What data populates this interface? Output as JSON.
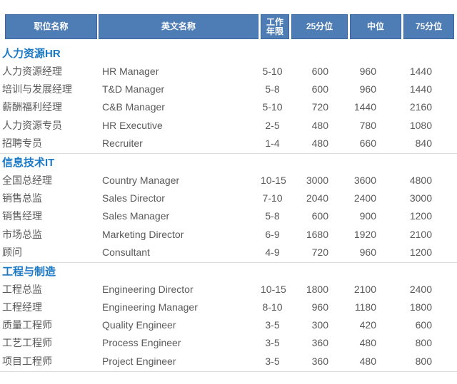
{
  "colors": {
    "header_fill": "#4E7CB4",
    "header_border": "#3A66A0",
    "header_text": "#FFFFFF",
    "section_title": "#1B78C5",
    "body_text": "#595959",
    "divider": "#DBDBDB"
  },
  "table": {
    "columns": [
      {
        "id": "cn",
        "label": "职位名称"
      },
      {
        "id": "en",
        "label": "英文名称"
      },
      {
        "id": "years",
        "label": "工作\n年限"
      },
      {
        "id": "p25",
        "label": "25分位"
      },
      {
        "id": "median",
        "label": "中位"
      },
      {
        "id": "p75",
        "label": "75分位"
      }
    ],
    "sections": [
      {
        "title": "人力资源HR",
        "rows": [
          {
            "cn": "人力资源经理",
            "en": "HR Manager",
            "years": "5-10",
            "p25": "600",
            "median": "960",
            "p75": "1440"
          },
          {
            "cn": "培训与发展经理",
            "en": "T&D Manager",
            "years": "5-8",
            "p25": "600",
            "median": "960",
            "p75": "1440"
          },
          {
            "cn": "薪酬福利经理",
            "en": "C&B Manager",
            "years": "5-10",
            "p25": "720",
            "median": "1440",
            "p75": "2160"
          },
          {
            "cn": "人力资源专员",
            "en": "HR Executive",
            "years": "2-5",
            "p25": "480",
            "median": "780",
            "p75": "1080"
          },
          {
            "cn": "招聘专员",
            "en": "Recruiter",
            "years": "1-4",
            "p25": "480",
            "median": "660",
            "p75": "840"
          }
        ]
      },
      {
        "title": "信息技术IT",
        "rows": [
          {
            "cn": "全国总经理",
            "en": "Country Manager",
            "years": "10-15",
            "p25": "3000",
            "median": "3600",
            "p75": "4800"
          },
          {
            "cn": "销售总监",
            "en": "Sales Director",
            "years": "7-10",
            "p25": "2040",
            "median": "2400",
            "p75": "3000"
          },
          {
            "cn": "销售经理",
            "en": "Sales Manager",
            "years": "5-8",
            "p25": "600",
            "median": "900",
            "p75": "1200"
          },
          {
            "cn": "市场总监",
            "en": "Marketing Director",
            "years": "6-9",
            "p25": "1680",
            "median": "1920",
            "p75": "2100"
          },
          {
            "cn": "顾问",
            "en": "Consultant",
            "years": "4-9",
            "p25": "720",
            "median": "960",
            "p75": "1200"
          }
        ]
      },
      {
        "title": "工程与制造",
        "rows": [
          {
            "cn": "工程总监",
            "en": "Engineering Director",
            "years": "10-15",
            "p25": "1800",
            "median": "2100",
            "p75": "2400"
          },
          {
            "cn": "工程经理",
            "en": "Engineering Manager",
            "years": "8-10",
            "p25": "960",
            "median": "1180",
            "p75": "1800"
          },
          {
            "cn": "质量工程师",
            "en": "Quality Engineer",
            "years": "3-5",
            "p25": "300",
            "median": "420",
            "p75": "600"
          },
          {
            "cn": "工艺工程师",
            "en": "Process Engineer",
            "years": "3-5",
            "p25": "360",
            "median": "480",
            "p75": "800"
          },
          {
            "cn": "项目工程师",
            "en": "Project Engineer",
            "years": "3-5",
            "p25": "360",
            "median": "480",
            "p75": "800"
          }
        ]
      }
    ]
  }
}
